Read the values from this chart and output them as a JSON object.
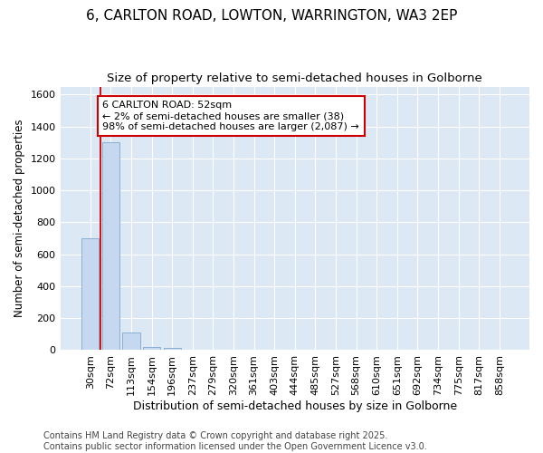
{
  "title1": "6, CARLTON ROAD, LOWTON, WARRINGTON, WA3 2EP",
  "title2": "Size of property relative to semi-detached houses in Golborne",
  "xlabel": "Distribution of semi-detached houses by size in Golborne",
  "ylabel": "Number of semi-detached properties",
  "categories": [
    "30sqm",
    "72sqm",
    "113sqm",
    "154sqm",
    "196sqm",
    "237sqm",
    "279sqm",
    "320sqm",
    "361sqm",
    "403sqm",
    "444sqm",
    "485sqm",
    "527sqm",
    "568sqm",
    "610sqm",
    "651sqm",
    "692sqm",
    "734sqm",
    "775sqm",
    "817sqm",
    "858sqm"
  ],
  "values": [
    700,
    1300,
    110,
    20,
    15,
    0,
    0,
    0,
    0,
    0,
    0,
    0,
    0,
    0,
    0,
    0,
    0,
    0,
    0,
    0,
    0
  ],
  "bar_color": "#c5d8ef",
  "bar_edge_color": "#8ab0d4",
  "annotation_text": "6 CARLTON ROAD: 52sqm\n← 2% of semi-detached houses are smaller (38)\n98% of semi-detached houses are larger (2,087) →",
  "annotation_box_color": "#ffffff",
  "annotation_box_edge_color": "#cc0000",
  "vline_color": "#cc0000",
  "ylim": [
    0,
    1650
  ],
  "yticks": [
    0,
    200,
    400,
    600,
    800,
    1000,
    1200,
    1400,
    1600
  ],
  "plot_bg_color": "#dde8f5",
  "fig_bg_color": "#ffffff",
  "grid_color": "#ffffff",
  "footer_text": "Contains HM Land Registry data © Crown copyright and database right 2025.\nContains public sector information licensed under the Open Government Licence v3.0.",
  "title1_fontsize": 11,
  "title2_fontsize": 9.5,
  "xlabel_fontsize": 9,
  "ylabel_fontsize": 8.5,
  "tick_fontsize": 8,
  "annotation_fontsize": 8,
  "footer_fontsize": 7
}
